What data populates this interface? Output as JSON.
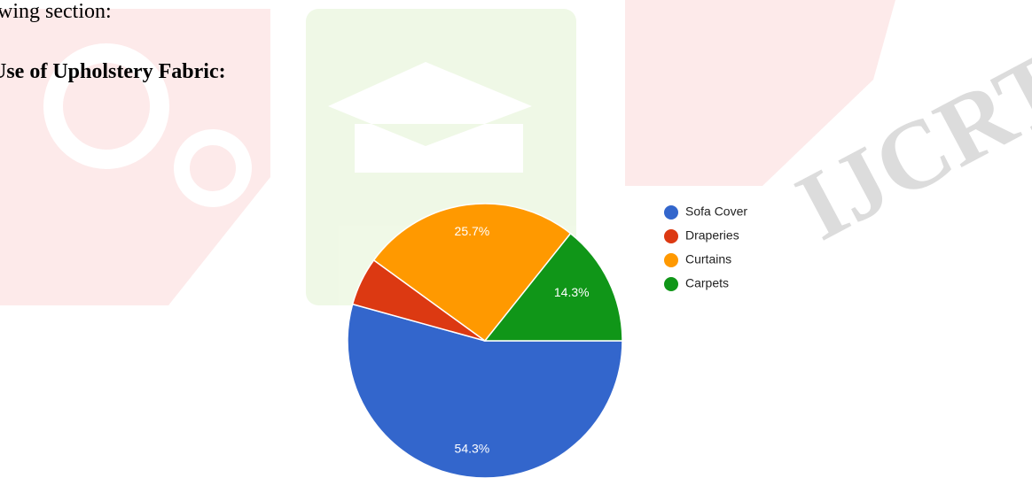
{
  "intro": "wing section:",
  "heading": "Use of Upholstery Fabric:",
  "watermark": "IJCRT",
  "chart_data": {
    "type": "pie",
    "categories": [
      "Sofa Cover",
      "Draperies",
      "Curtains",
      "Carpets"
    ],
    "values": [
      54.3,
      5.7,
      25.7,
      14.3
    ],
    "value_labels": [
      "54.3%",
      null,
      "25.7%",
      "14.3%"
    ],
    "colors": [
      "#3366cc",
      "#dc3912",
      "#ff9900",
      "#109618"
    ],
    "legend": "right"
  }
}
